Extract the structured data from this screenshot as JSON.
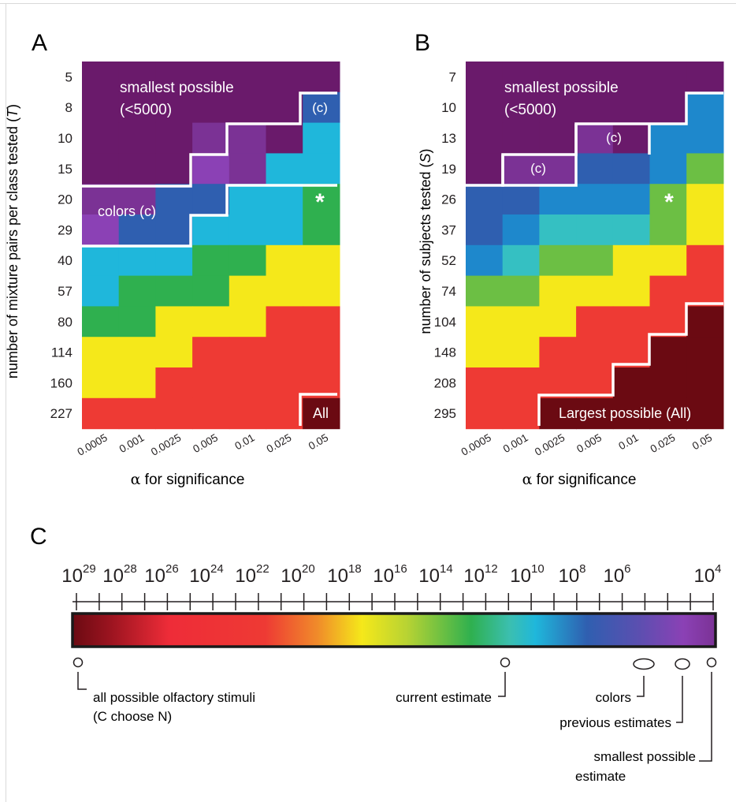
{
  "colors": {
    "c0": "#6a1a6b",
    "c1": "#7b3295",
    "c2": "#8b41b5",
    "c3": "#2f5fb0",
    "c4": "#1e88cc",
    "c5": "#1fb7db",
    "c6": "#35c0c2",
    "c7": "#2fb04f",
    "c8": "#6cbf44",
    "c9": "#f5e81a",
    "c10": "#ee3a34",
    "c11": "#6b0a12",
    "outline": "#ffffff",
    "text_dark": "#231f20"
  },
  "panel_a": {
    "letter": "A",
    "ylabel_prefix": "number of mixture pairs per class tested (",
    "ylabel_var": "T",
    "ylabel_suffix": ")",
    "xlabel_symbol": "α",
    "xlabel_text": " for significance",
    "smallest_line1": "smallest possible",
    "smallest_line2": "(<5000)",
    "colors_label": "colors (c)",
    "c_label": "(c)",
    "star": "*",
    "all_label": "All"
  },
  "panel_b": {
    "letter": "B",
    "ylabel_prefix": "number of subjects  tested (",
    "ylabel_var": "S",
    "ylabel_suffix": ")",
    "xlabel_symbol": "α",
    "xlabel_text": " for significance",
    "smallest_line1": "smallest possible",
    "smallest_line2": "(<5000)",
    "c_label": "(c)",
    "star": "*",
    "largest_label": "Largest possible (All)"
  },
  "panel_c": {
    "letter": "C",
    "scale_labels": [
      "29",
      "28",
      "26",
      "24",
      "22",
      "20",
      "18",
      "16",
      "14",
      "12",
      "10",
      "8",
      "6",
      "4"
    ],
    "scale_base": "10",
    "annotations": {
      "all_possible_line1": "all possible olfactory stimuli",
      "all_possible_line2": "(C choose N)",
      "current": "current estimate",
      "colors": "colors",
      "previous": "previous estimates",
      "smallest_line1": "smallest possible",
      "smallest_line2": "estimate"
    }
  },
  "chart_data": [
    {
      "type": "heatmap",
      "panel": "A",
      "xlabel": "α for significance",
      "ylabel": "number of mixture pairs per class tested (T)",
      "x_categories": [
        "0.0005",
        "0.001",
        "0.0025",
        "0.005",
        "0.01",
        "0.025",
        "0.05"
      ],
      "y_categories": [
        "5",
        "8",
        "10",
        "15",
        "20",
        "29",
        "40",
        "57",
        "80",
        "114",
        "160",
        "227"
      ],
      "color_index": [
        [
          0,
          0,
          0,
          0,
          0,
          0,
          0
        ],
        [
          0,
          0,
          0,
          0,
          0,
          0,
          3
        ],
        [
          0,
          0,
          0,
          1,
          1,
          0,
          5
        ],
        [
          0,
          0,
          0,
          2,
          1,
          5,
          5
        ],
        [
          1,
          1,
          3,
          3,
          5,
          5,
          7
        ],
        [
          2,
          3,
          3,
          5,
          5,
          5,
          7
        ],
        [
          5,
          5,
          5,
          7,
          7,
          9,
          9
        ],
        [
          5,
          7,
          7,
          7,
          9,
          9,
          9
        ],
        [
          7,
          7,
          9,
          9,
          9,
          10,
          10
        ],
        [
          9,
          9,
          9,
          10,
          10,
          10,
          10
        ],
        [
          9,
          9,
          10,
          10,
          10,
          10,
          10
        ],
        [
          10,
          10,
          10,
          10,
          10,
          10,
          11
        ]
      ]
    },
    {
      "type": "heatmap",
      "panel": "B",
      "xlabel": "α for significance",
      "ylabel": "number of subjects  tested (S)",
      "x_categories": [
        "0.0005",
        "0.001",
        "0.0025",
        "0.005",
        "0.01",
        "0.025",
        "0.05"
      ],
      "y_categories": [
        "7",
        "10",
        "13",
        "19",
        "26",
        "37",
        "52",
        "74",
        "104",
        "148",
        "208",
        "295"
      ],
      "color_index": [
        [
          0,
          0,
          0,
          0,
          0,
          0,
          0
        ],
        [
          0,
          0,
          0,
          0,
          0,
          0,
          4
        ],
        [
          0,
          0,
          0,
          1,
          0,
          4,
          4
        ],
        [
          0,
          1,
          1,
          3,
          3,
          4,
          8
        ],
        [
          3,
          3,
          4,
          4,
          4,
          8,
          9
        ],
        [
          3,
          4,
          6,
          6,
          6,
          8,
          9
        ],
        [
          4,
          6,
          8,
          8,
          9,
          9,
          10
        ],
        [
          8,
          8,
          9,
          9,
          9,
          10,
          10
        ],
        [
          9,
          9,
          9,
          10,
          10,
          10,
          11
        ],
        [
          9,
          9,
          10,
          10,
          10,
          11,
          11
        ],
        [
          10,
          10,
          10,
          10,
          11,
          11,
          11
        ],
        [
          10,
          10,
          11,
          11,
          11,
          11,
          11
        ]
      ]
    },
    {
      "type": "color-scale",
      "panel": "C",
      "tick_labels": [
        "10^29",
        "10^28",
        "10^26",
        "10^24",
        "10^22",
        "10^20",
        "10^18",
        "10^16",
        "10^14",
        "10^12",
        "10^10",
        "10^8",
        "10^6",
        "10^4"
      ],
      "markers": [
        "all possible olfactory stimuli (C choose N)",
        "current estimate",
        "colors",
        "previous estimates",
        "smallest possible estimate"
      ]
    }
  ]
}
